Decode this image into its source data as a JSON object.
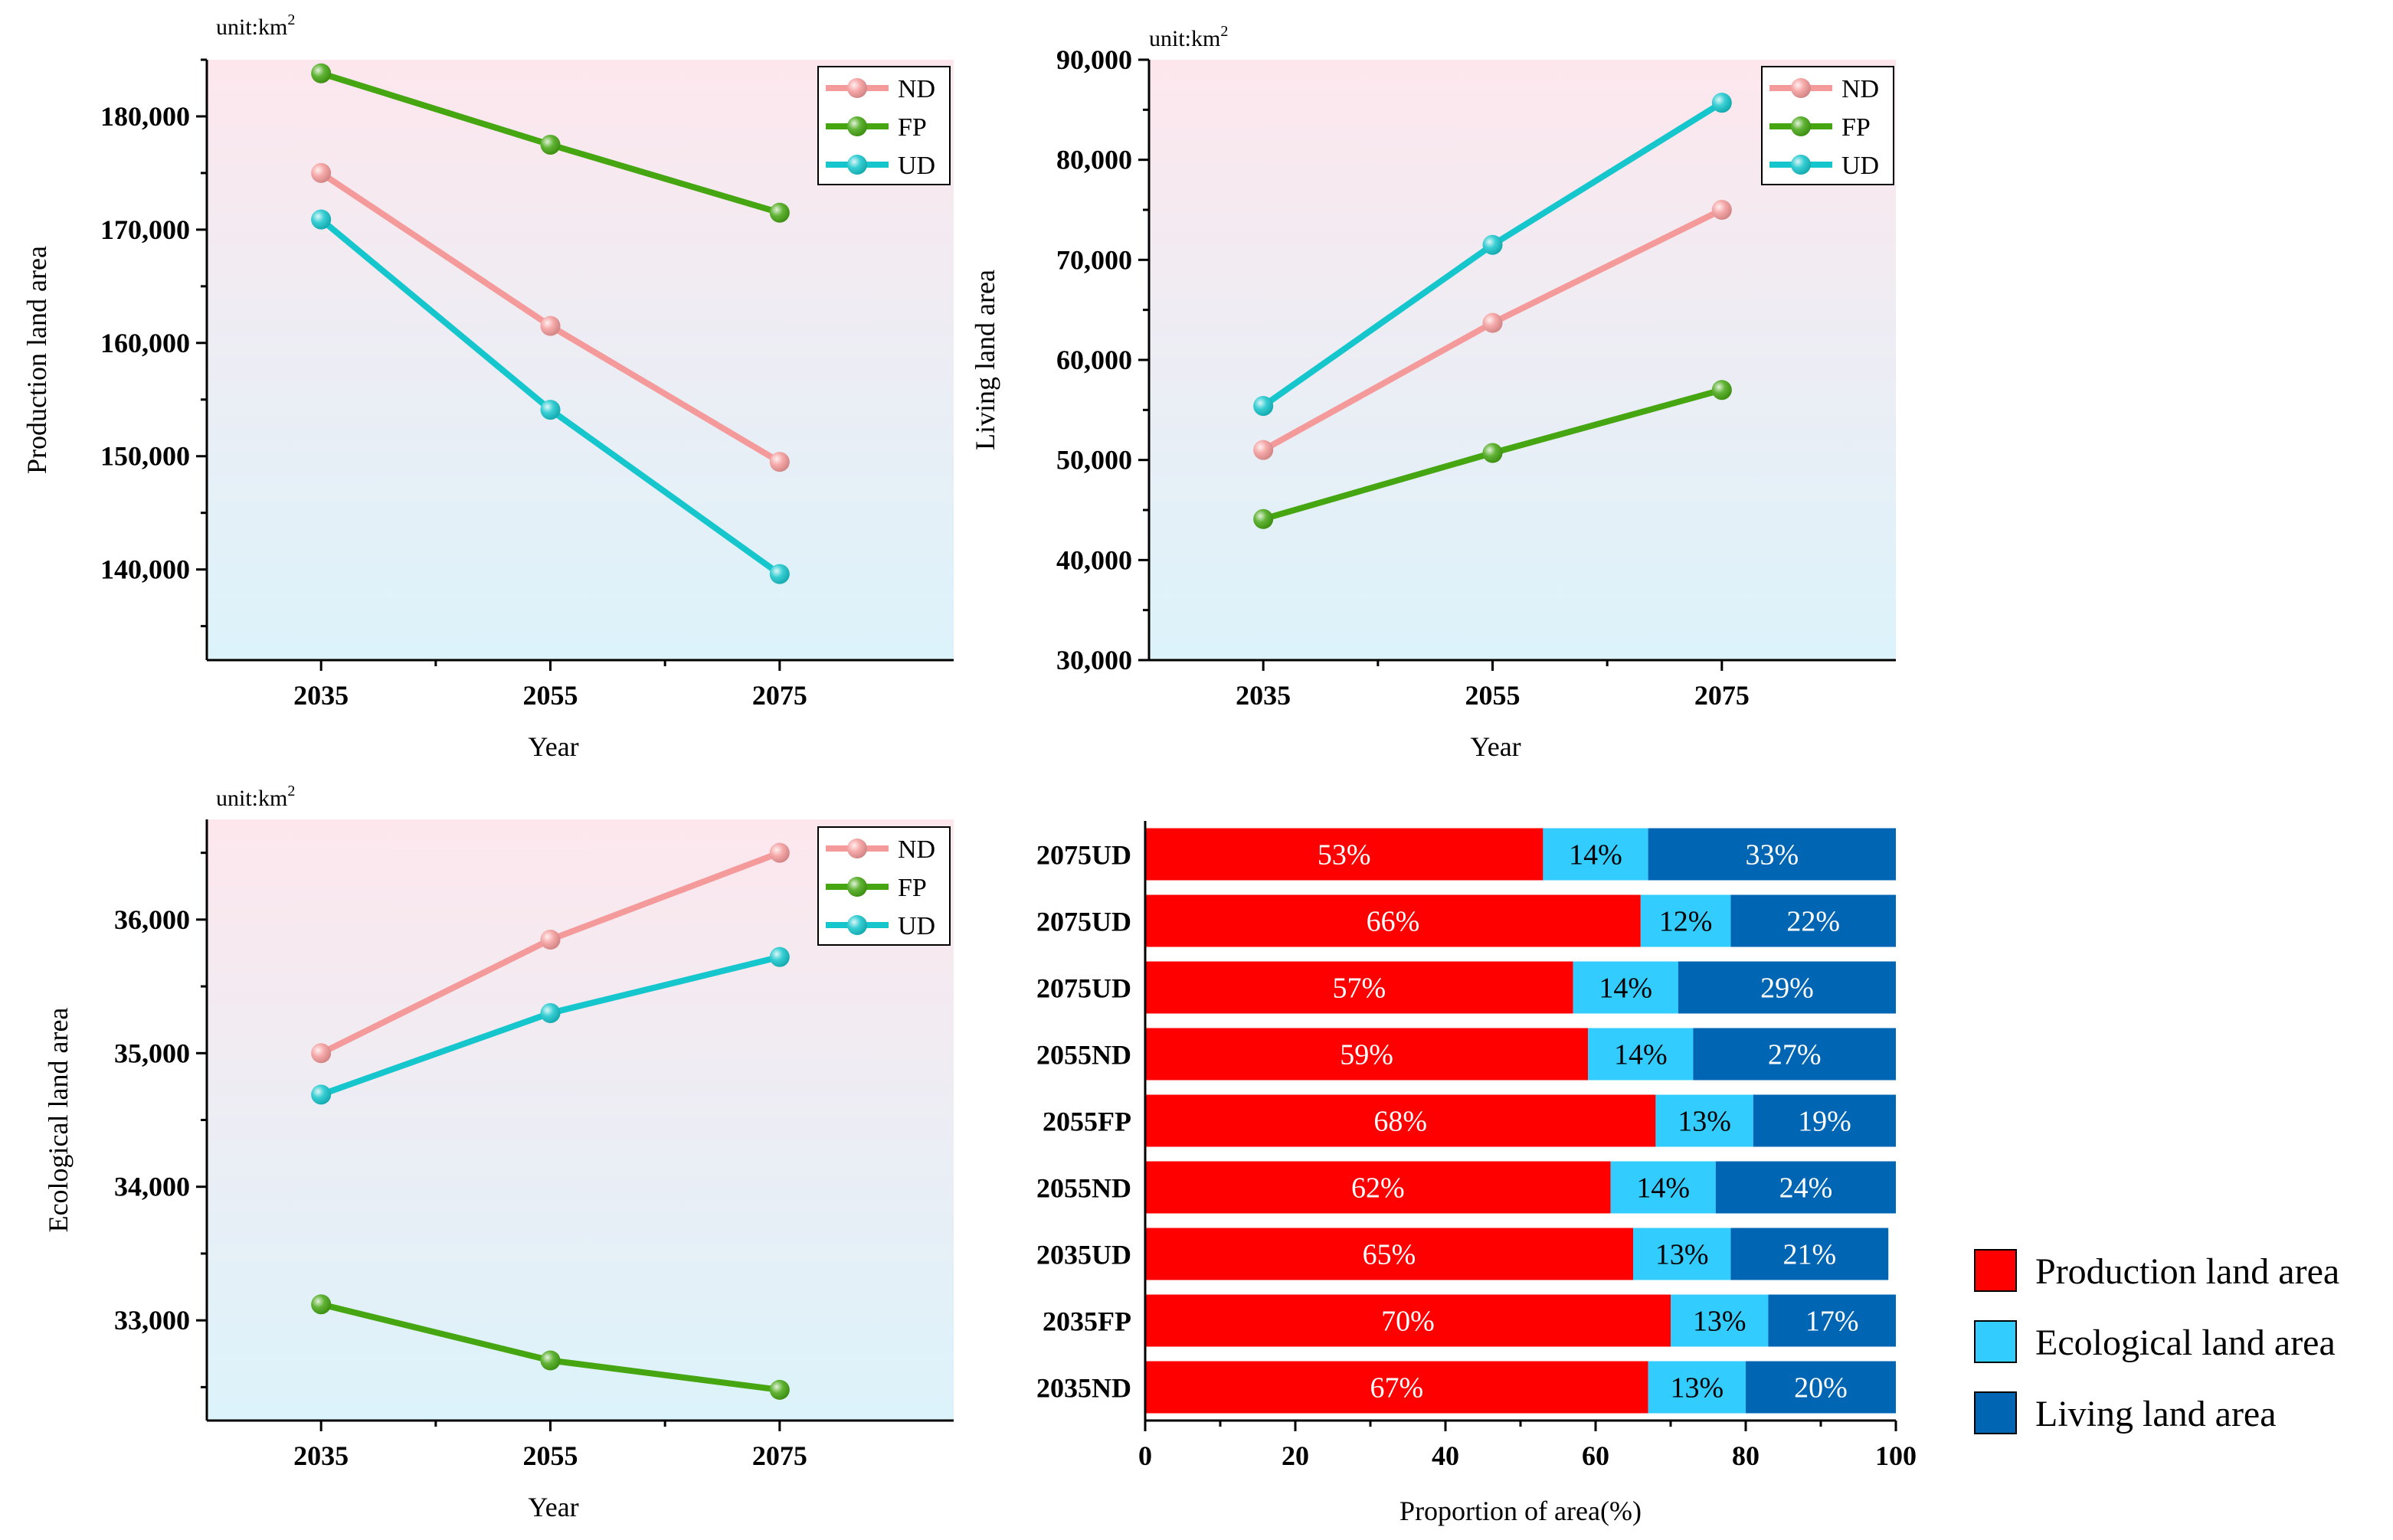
{
  "colors": {
    "ND": "#f59a9a",
    "FP": "#45a612",
    "UD": "#15c6cc",
    "production": "#ff0000",
    "ecological": "#33ccff",
    "living": "#0066b3",
    "bg_top": "#fde7ed",
    "bg_bottom": "#dcf3fb"
  },
  "chart_data": [
    {
      "type": "line",
      "id": "production",
      "unit": "unit:km",
      "unit_sup": "2",
      "ylabel": "Production land area",
      "xlabel": "Year",
      "x": [
        "2035",
        "2055",
        "2075"
      ],
      "ylim": [
        132000,
        185000
      ],
      "yticks": [
        140000,
        150000,
        160000,
        170000,
        180000
      ],
      "ytick_labels": [
        "140,000",
        "150,000",
        "160,000",
        "170,000",
        "180,000"
      ],
      "series": [
        {
          "name": "ND",
          "values": [
            175000,
            161500,
            149500
          ]
        },
        {
          "name": "FP",
          "values": [
            183800,
            177500,
            171500
          ]
        },
        {
          "name": "UD",
          "values": [
            170900,
            154100,
            139600
          ]
        }
      ]
    },
    {
      "type": "line",
      "id": "living",
      "unit": "unit:km",
      "unit_sup": "2",
      "ylabel": "Living land area",
      "xlabel": "Year",
      "x": [
        "2035",
        "2055",
        "2075"
      ],
      "ylim": [
        30000,
        90000
      ],
      "yticks": [
        30000,
        40000,
        50000,
        60000,
        70000,
        80000,
        90000
      ],
      "ytick_labels": [
        "30,000",
        "40,000",
        "50,000",
        "60,000",
        "70,000",
        "80,000",
        "90,000"
      ],
      "series": [
        {
          "name": "ND",
          "values": [
            51000,
            63700,
            75000
          ]
        },
        {
          "name": "FP",
          "values": [
            44100,
            50700,
            57000
          ]
        },
        {
          "name": "UD",
          "values": [
            55400,
            71500,
            85700
          ]
        }
      ]
    },
    {
      "type": "line",
      "id": "ecological",
      "unit": "unit:km",
      "unit_sup": "2",
      "ylabel": "Ecological land area",
      "xlabel": "Year",
      "x": [
        "2035",
        "2055",
        "2075"
      ],
      "ylim": [
        32250,
        36750
      ],
      "yticks": [
        33000,
        34000,
        35000,
        36000
      ],
      "ytick_labels": [
        "33,000",
        "34,000",
        "35,000",
        "36,000"
      ],
      "series": [
        {
          "name": "ND",
          "values": [
            35000,
            35850,
            36500
          ]
        },
        {
          "name": "FP",
          "values": [
            33120,
            32700,
            32480
          ]
        },
        {
          "name": "UD",
          "values": [
            34690,
            35300,
            35720
          ]
        }
      ]
    },
    {
      "type": "bar",
      "orientation": "horizontal",
      "stacked": true,
      "id": "proportion",
      "xlabel": "Proportion of area(%)",
      "xlim": [
        0,
        100
      ],
      "xticks": [
        "0",
        "20",
        "40",
        "60",
        "80",
        "100"
      ],
      "categories": [
        "2075UD",
        "2075UD",
        "2075UD",
        "2055ND",
        "2055FP",
        "2055ND",
        "2035UD",
        "2035FP",
        "2035ND"
      ],
      "series": [
        {
          "name": "Production land area",
          "values": [
            53,
            66,
            57,
            59,
            68,
            62,
            65,
            70,
            67
          ],
          "labels": [
            "53%",
            "66%",
            "57%",
            "59%",
            "68%",
            "62%",
            "65%",
            "70%",
            "67%"
          ]
        },
        {
          "name": "Ecological land area",
          "values": [
            14,
            12,
            14,
            14,
            13,
            14,
            13,
            13,
            13
          ],
          "labels": [
            "14%",
            "12%",
            "14%",
            "14%",
            "13%",
            "14%",
            "13%",
            "13%",
            "13%"
          ]
        },
        {
          "name": "Living land area",
          "values": [
            33,
            22,
            29,
            27,
            19,
            24,
            21,
            17,
            20
          ],
          "labels": [
            "33%",
            "22%",
            "29%",
            "27%",
            "19%",
            "24%",
            "21%",
            "17%",
            "20%"
          ]
        }
      ],
      "legend": [
        "Production land area",
        "Ecological land area",
        "Living land area"
      ]
    }
  ]
}
